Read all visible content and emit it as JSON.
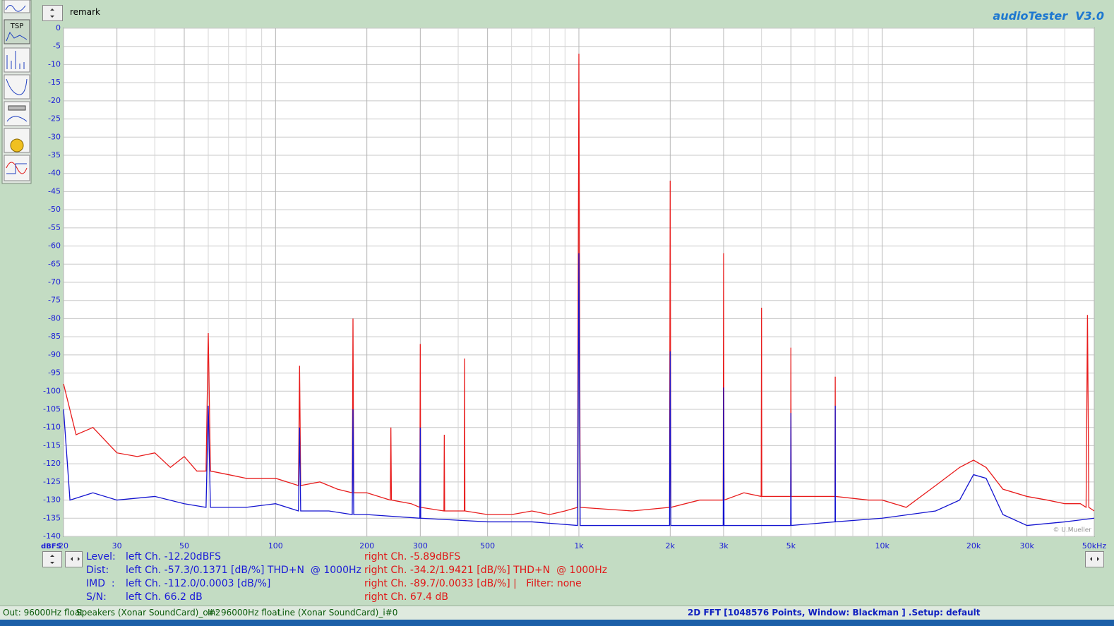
{
  "header": {
    "remark": "remark",
    "app_title": "audioTester  V3.0",
    "copyright": "© U.Mueller"
  },
  "chart_data": {
    "type": "line",
    "log_x": true,
    "grid": true,
    "y_unit_label": "dBFS",
    "xlim": [
      20,
      50000
    ],
    "xticks": [
      20,
      30,
      50,
      100,
      200,
      300,
      500,
      {
        "value": 1000,
        "label": "1k"
      },
      {
        "value": 2000,
        "label": "2k"
      },
      {
        "value": 3000,
        "label": "3k"
      },
      {
        "value": 5000,
        "label": "5k"
      },
      {
        "value": 10000,
        "label": "10k"
      },
      {
        "value": 20000,
        "label": "20k"
      },
      {
        "value": 30000,
        "label": "30k"
      },
      {
        "value": 50000,
        "label": "50kHz"
      }
    ],
    "x_minor_ticks": [
      40,
      60,
      70,
      80,
      90,
      400,
      600,
      700,
      800,
      900,
      4000,
      6000,
      7000,
      8000,
      9000,
      40000
    ],
    "ylim": [
      -140,
      0
    ],
    "yticks": [
      0,
      -5,
      -10,
      -15,
      -20,
      -25,
      -30,
      -35,
      -40,
      -45,
      -50,
      -55,
      -60,
      -65,
      -70,
      -75,
      -80,
      -85,
      -90,
      -95,
      -100,
      -105,
      -110,
      -115,
      -120,
      -125,
      -130,
      -135,
      -140
    ],
    "series": [
      {
        "name": "right Ch.",
        "color": "#e81c1c",
        "x": [
          20,
          22,
          25,
          30,
          35,
          40,
          45,
          50,
          55,
          59,
          60,
          61,
          70,
          80,
          100,
          119,
          120,
          121,
          140,
          160,
          179,
          180,
          181,
          200,
          239,
          240,
          241,
          280,
          299,
          300,
          301,
          359,
          360,
          361,
          419,
          420,
          421,
          500,
          600,
          700,
          800,
          900,
          990,
          1000,
          1010,
          1500,
          1990,
          2000,
          2010,
          2500,
          2990,
          3000,
          3010,
          3500,
          3990,
          4000,
          4010,
          4990,
          5000,
          5010,
          6990,
          7000,
          7010,
          9000,
          10000,
          12000,
          15000,
          18000,
          20000,
          22000,
          25000,
          30000,
          35000,
          40000,
          45000,
          47000,
          47500,
          48000,
          50000
        ],
        "values": [
          -98,
          -112,
          -110,
          -117,
          -118,
          -117,
          -121,
          -118,
          -122,
          -122,
          -84,
          -122,
          -123,
          -124,
          -124,
          -126,
          -93,
          -126,
          -125,
          -127,
          -128,
          -80,
          -128,
          -128,
          -130,
          -110,
          -130,
          -131,
          -132,
          -87,
          -132,
          -133,
          -112,
          -133,
          -133,
          -91,
          -133,
          -134,
          -134,
          -133,
          -134,
          -133,
          -132,
          -7,
          -132,
          -133,
          -132,
          -42,
          -132,
          -130,
          -130,
          -62,
          -130,
          -128,
          -129,
          -77,
          -129,
          -129,
          -88,
          -129,
          -129,
          -96,
          -129,
          -130,
          -130,
          -132,
          -126,
          -121,
          -119,
          -121,
          -127,
          -129,
          -130,
          -131,
          -131,
          -132,
          -79,
          -132,
          -133
        ]
      },
      {
        "name": "left Ch.",
        "color": "#1414d0",
        "x": [
          20,
          21,
          25,
          30,
          40,
          50,
          59,
          60,
          61,
          80,
          100,
          119,
          120,
          121,
          150,
          179,
          180,
          181,
          200,
          299,
          300,
          301,
          500,
          700,
          990,
          1000,
          1010,
          1500,
          1990,
          2000,
          2010,
          2990,
          3000,
          3010,
          4990,
          5000,
          5010,
          6990,
          7000,
          7010,
          10000,
          15000,
          18000,
          20000,
          22000,
          25000,
          30000,
          40000,
          50000
        ],
        "values": [
          -105,
          -130,
          -128,
          -130,
          -129,
          -131,
          -132,
          -104,
          -132,
          -132,
          -131,
          -133,
          -110,
          -133,
          -133,
          -134,
          -105,
          -134,
          -134,
          -135,
          -110,
          -135,
          -136,
          -136,
          -137,
          -62,
          -137,
          -137,
          -137,
          -89,
          -137,
          -137,
          -99,
          -137,
          -137,
          -106,
          -137,
          -136,
          -104,
          -136,
          -135,
          -133,
          -130,
          -123,
          -124,
          -134,
          -137,
          -136,
          -135
        ]
      }
    ]
  },
  "info": {
    "labels": [
      "Level:",
      "Dist:",
      "IMD  :",
      "S/N:"
    ],
    "left": [
      "left Ch. -12.20dBFS",
      "left Ch. -57.3/0.1371 [dB/%] THD+N  @ 1000Hz",
      "left Ch. -112.0/0.0003 [dB/%]",
      "left Ch. 66.2 dB"
    ],
    "right": [
      "right Ch. -5.89dBFS",
      "right Ch. -34.2/1.9421 [dB/%] THD+N  @ 1000Hz",
      "right Ch. -89.7/0.0033 [dB/%] |   Filter: none",
      "right Ch. 67.4 dB"
    ]
  },
  "status": {
    "out": "Out: 96000Hz float",
    "out_device": "Speakers (Xonar SoundCard)_o#2",
    "in": "In: 96000Hz float",
    "in_device": "Line (Xonar SoundCard)_i#0",
    "mode": "2D FFT [1048576 Points, Window: Blackman ]  .Setup:  default"
  }
}
